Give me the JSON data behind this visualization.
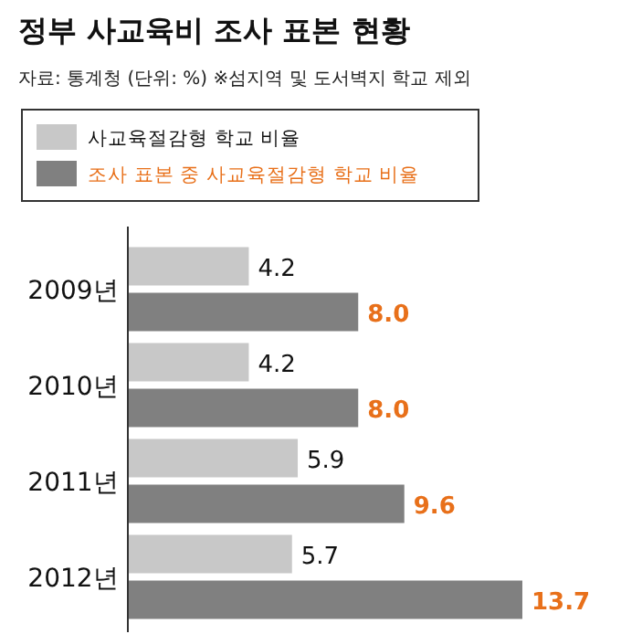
{
  "chart_data": {
    "type": "bar",
    "orientation": "horizontal",
    "title": "정부 사교육비 조사 표본 현황",
    "subtitle": "자료: 통계청 (단위: %)    ※섬지역 및 도서벽지 학교 제외",
    "categories": [
      "2009년",
      "2010년",
      "2011년",
      "2012년"
    ],
    "series": [
      {
        "name": "사교육절감형 학교 비율",
        "color": "#c8c8c8",
        "values": [
          4.2,
          4.2,
          5.9,
          5.7
        ],
        "value_labels": [
          "4.2",
          "4.2",
          "5.9",
          "5.7"
        ]
      },
      {
        "name": "조사 표본 중 사교육절감형 학교 비율",
        "color": "#808080",
        "values": [
          8.0,
          8.0,
          9.6,
          13.7
        ],
        "value_labels": [
          "8.0",
          "8.0",
          "9.6",
          "13.7"
        ]
      }
    ],
    "legend": "top left"
  }
}
